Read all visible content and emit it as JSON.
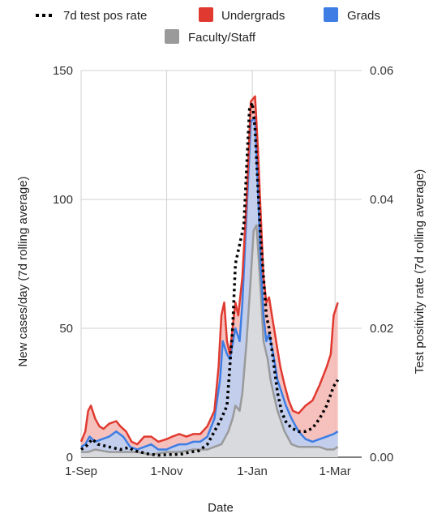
{
  "chart_data": {
    "type": "area",
    "x_axis_label": "Date",
    "y_left_label": "New cases/day (7d rolling average)",
    "y_right_label": "Test positivity rate (7d rolling average)",
    "x_ticks": [
      "1-Sep",
      "1-Nov",
      "1-Jan",
      "1-Mar"
    ],
    "x_tick_positions": [
      0,
      61,
      122,
      181
    ],
    "y_left_ticks": [
      "0",
      "50",
      "100",
      "150"
    ],
    "y_left_tick_values": [
      0,
      50,
      100,
      150
    ],
    "y_right_ticks": [
      "0.00",
      "0.02",
      "0.04",
      "0.06"
    ],
    "y_right_tick_values": [
      0,
      0.02,
      0.04,
      0.06
    ],
    "y_left_range": [
      0,
      150
    ],
    "y_right_range": [
      0,
      0.06
    ],
    "x_range": [
      0,
      200
    ],
    "grid": true,
    "legend_position": "top",
    "colors": {
      "undergrads_line": "#e03a30",
      "undergrads_fill": "#f4b6b1",
      "grads_line": "#3d7de4",
      "grads_fill": "#b9d0f4",
      "faculty_line": "#9a9a9a",
      "faculty_fill": "#dcdcdc",
      "rate_line": "#000000"
    },
    "legend": [
      {
        "key": "rate",
        "label": "7d test pos rate"
      },
      {
        "key": "undergrads",
        "label": "Undergrads"
      },
      {
        "key": "grads",
        "label": "Grads"
      },
      {
        "key": "faculty",
        "label": "Faculty/Staff"
      }
    ],
    "series": [
      {
        "key": "faculty",
        "name": "Faculty/Staff",
        "axis": "left",
        "points": [
          [
            0,
            2
          ],
          [
            5,
            2
          ],
          [
            10,
            3
          ],
          [
            20,
            2
          ],
          [
            30,
            2
          ],
          [
            40,
            2
          ],
          [
            50,
            1
          ],
          [
            61,
            2
          ],
          [
            70,
            2
          ],
          [
            80,
            3
          ],
          [
            90,
            3
          ],
          [
            100,
            5
          ],
          [
            105,
            10
          ],
          [
            108,
            15
          ],
          [
            110,
            20
          ],
          [
            113,
            18
          ],
          [
            115,
            25
          ],
          [
            118,
            45
          ],
          [
            121,
            70
          ],
          [
            123,
            88
          ],
          [
            125,
            90
          ],
          [
            128,
            65
          ],
          [
            130,
            45
          ],
          [
            133,
            38
          ],
          [
            135,
            30
          ],
          [
            137,
            25
          ],
          [
            140,
            18
          ],
          [
            145,
            10
          ],
          [
            150,
            5
          ],
          [
            155,
            4
          ],
          [
            160,
            4
          ],
          [
            165,
            4
          ],
          [
            170,
            4
          ],
          [
            175,
            3
          ],
          [
            180,
            3
          ],
          [
            183,
            4
          ]
        ]
      },
      {
        "key": "grads",
        "name": "Grads",
        "axis": "left",
        "points": [
          [
            0,
            4
          ],
          [
            3,
            5
          ],
          [
            6,
            8
          ],
          [
            10,
            6
          ],
          [
            15,
            7
          ],
          [
            20,
            8
          ],
          [
            25,
            10
          ],
          [
            30,
            8
          ],
          [
            35,
            4
          ],
          [
            40,
            3
          ],
          [
            45,
            4
          ],
          [
            50,
            5
          ],
          [
            55,
            3
          ],
          [
            61,
            3
          ],
          [
            65,
            4
          ],
          [
            70,
            5
          ],
          [
            75,
            5
          ],
          [
            80,
            6
          ],
          [
            85,
            6
          ],
          [
            90,
            8
          ],
          [
            95,
            15
          ],
          [
            99,
            30
          ],
          [
            101,
            45
          ],
          [
            104,
            40
          ],
          [
            106,
            38
          ],
          [
            110,
            50
          ],
          [
            113,
            45
          ],
          [
            115,
            60
          ],
          [
            118,
            95
          ],
          [
            121,
            130
          ],
          [
            124,
            132
          ],
          [
            126,
            105
          ],
          [
            128,
            75
          ],
          [
            130,
            55
          ],
          [
            132,
            45
          ],
          [
            134,
            48
          ],
          [
            137,
            40
          ],
          [
            140,
            30
          ],
          [
            143,
            25
          ],
          [
            146,
            20
          ],
          [
            150,
            15
          ],
          [
            155,
            10
          ],
          [
            160,
            7
          ],
          [
            165,
            6
          ],
          [
            170,
            7
          ],
          [
            175,
            8
          ],
          [
            180,
            9
          ],
          [
            183,
            10
          ]
        ]
      },
      {
        "key": "undergrads",
        "name": "Undergrads",
        "axis": "left",
        "points": [
          [
            0,
            6
          ],
          [
            3,
            10
          ],
          [
            5,
            18
          ],
          [
            7,
            20
          ],
          [
            10,
            15
          ],
          [
            13,
            12
          ],
          [
            16,
            11
          ],
          [
            20,
            13
          ],
          [
            25,
            14
          ],
          [
            28,
            12
          ],
          [
            32,
            10
          ],
          [
            36,
            6
          ],
          [
            40,
            5
          ],
          [
            45,
            8
          ],
          [
            50,
            8
          ],
          [
            55,
            6
          ],
          [
            61,
            7
          ],
          [
            65,
            8
          ],
          [
            70,
            9
          ],
          [
            75,
            8
          ],
          [
            80,
            9
          ],
          [
            85,
            9
          ],
          [
            90,
            12
          ],
          [
            95,
            18
          ],
          [
            98,
            35
          ],
          [
            100,
            55
          ],
          [
            102,
            60
          ],
          [
            104,
            45
          ],
          [
            106,
            40
          ],
          [
            108,
            50
          ],
          [
            110,
            60
          ],
          [
            112,
            55
          ],
          [
            115,
            70
          ],
          [
            118,
            100
          ],
          [
            121,
            138
          ],
          [
            124,
            140
          ],
          [
            126,
            120
          ],
          [
            128,
            95
          ],
          [
            130,
            70
          ],
          [
            132,
            60
          ],
          [
            134,
            62
          ],
          [
            136,
            55
          ],
          [
            139,
            45
          ],
          [
            142,
            35
          ],
          [
            145,
            28
          ],
          [
            148,
            22
          ],
          [
            151,
            18
          ],
          [
            155,
            17
          ],
          [
            160,
            20
          ],
          [
            165,
            22
          ],
          [
            170,
            28
          ],
          [
            175,
            35
          ],
          [
            178,
            40
          ],
          [
            180,
            55
          ],
          [
            183,
            60
          ]
        ]
      },
      {
        "key": "rate",
        "name": "7d test pos rate",
        "axis": "right",
        "points": [
          [
            0,
            0.0012
          ],
          [
            4,
            0.0018
          ],
          [
            8,
            0.0028
          ],
          [
            12,
            0.002
          ],
          [
            16,
            0.0018
          ],
          [
            22,
            0.0015
          ],
          [
            28,
            0.0012
          ],
          [
            34,
            0.0015
          ],
          [
            38,
            0.001
          ],
          [
            42,
            0.0008
          ],
          [
            48,
            0.0005
          ],
          [
            55,
            0.0003
          ],
          [
            61,
            0.0004
          ],
          [
            66,
            0.0004
          ],
          [
            72,
            0.0005
          ],
          [
            78,
            0.0008
          ],
          [
            84,
            0.001
          ],
          [
            90,
            0.002
          ],
          [
            95,
            0.004
          ],
          [
            100,
            0.006
          ],
          [
            104,
            0.008
          ],
          [
            106,
            0.014
          ],
          [
            108,
            0.02
          ],
          [
            110,
            0.03
          ],
          [
            113,
            0.033
          ],
          [
            116,
            0.036
          ],
          [
            118,
            0.045
          ],
          [
            120,
            0.054
          ],
          [
            122,
            0.055
          ],
          [
            124,
            0.051
          ],
          [
            126,
            0.042
          ],
          [
            128,
            0.034
          ],
          [
            130,
            0.028
          ],
          [
            132,
            0.022
          ],
          [
            134,
            0.02
          ],
          [
            137,
            0.015
          ],
          [
            140,
            0.01
          ],
          [
            143,
            0.007
          ],
          [
            146,
            0.0055
          ],
          [
            150,
            0.0045
          ],
          [
            155,
            0.004
          ],
          [
            160,
            0.004
          ],
          [
            165,
            0.0045
          ],
          [
            170,
            0.006
          ],
          [
            175,
            0.008
          ],
          [
            180,
            0.011
          ],
          [
            183,
            0.012
          ]
        ]
      }
    ]
  }
}
